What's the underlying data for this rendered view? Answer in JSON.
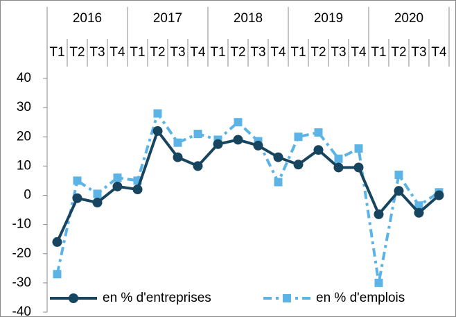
{
  "chart_data": {
    "type": "line",
    "years": [
      "2016",
      "2017",
      "2018",
      "2019",
      "2020"
    ],
    "categories": [
      "T1",
      "T2",
      "T3",
      "T4",
      "T1",
      "T2",
      "T3",
      "T4",
      "T1",
      "T2",
      "T3",
      "T4",
      "T1",
      "T2",
      "T3",
      "T4",
      "T1",
      "T2",
      "T3",
      "T4"
    ],
    "series": [
      {
        "name": "en % d'entreprises",
        "color": "#17445e",
        "dashed": false,
        "marker": "circle",
        "values": [
          -16,
          -1,
          -2.5,
          3,
          2,
          22,
          13,
          10,
          17.5,
          19,
          17,
          13,
          10.5,
          15.5,
          9.5,
          9.5,
          -6.5,
          1.5,
          -6,
          0
        ]
      },
      {
        "name": "en % d'emplois",
        "color": "#5bb4e5",
        "dashed": true,
        "marker": "square",
        "values": [
          -27,
          5,
          0.5,
          6,
          5,
          28,
          18,
          21,
          19,
          25,
          18.5,
          4.5,
          20,
          21.5,
          12.5,
          16,
          -30,
          7,
          -3.5,
          1
        ]
      }
    ],
    "ylim": [
      -40,
      40
    ],
    "yticks": [
      40,
      30,
      20,
      10,
      0,
      -10,
      -20,
      -30,
      -40
    ],
    "grid": false,
    "legend": "bottom"
  }
}
